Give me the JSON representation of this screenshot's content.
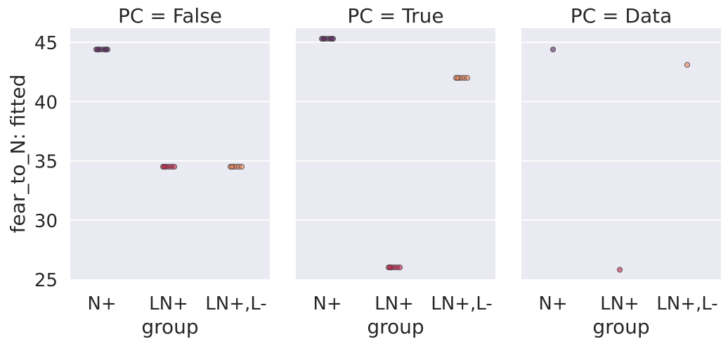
{
  "chart_data": {
    "type": "scatter",
    "ylabel": "fear_to_N: fitted",
    "xlabel": "group",
    "ylim": [
      25,
      46.2
    ],
    "yticks": [
      25,
      30,
      35,
      40,
      45
    ],
    "categories": [
      "N+",
      "LN+",
      "LN+,L-"
    ],
    "grid": true,
    "colors": {
      "N+": "#5b2a5e",
      "LN+": "#c0234a",
      "LN+,L-": "#e8845c",
      "background": "#eaeaf2",
      "gridline": "#ffffff"
    },
    "panels": [
      {
        "title": "PC = False",
        "points": [
          {
            "group": "N+",
            "values": [
              44.4,
              44.4,
              44.4,
              44.4,
              44.4,
              44.4,
              44.4
            ]
          },
          {
            "group": "LN+",
            "values": [
              34.5,
              34.5,
              34.5,
              34.5,
              34.5,
              34.5
            ]
          },
          {
            "group": "LN+,L-",
            "values": [
              34.5,
              34.5,
              34.5,
              34.5,
              34.5,
              34.5
            ]
          }
        ]
      },
      {
        "title": "PC = True",
        "points": [
          {
            "group": "N+",
            "values": [
              45.3,
              45.3,
              45.3,
              45.3,
              45.3,
              45.3,
              45.3
            ]
          },
          {
            "group": "LN+",
            "values": [
              26.0,
              26.0,
              26.0,
              26.0,
              26.0,
              26.0
            ]
          },
          {
            "group": "LN+,L-",
            "values": [
              42.0,
              42.0,
              42.0,
              42.0,
              42.0,
              42.0
            ]
          }
        ]
      },
      {
        "title": "PC = Data",
        "points": [
          {
            "group": "N+",
            "values": [
              44.4
            ]
          },
          {
            "group": "LN+",
            "values": [
              25.8
            ]
          },
          {
            "group": "LN+,L-",
            "values": [
              43.1
            ]
          }
        ]
      }
    ]
  }
}
